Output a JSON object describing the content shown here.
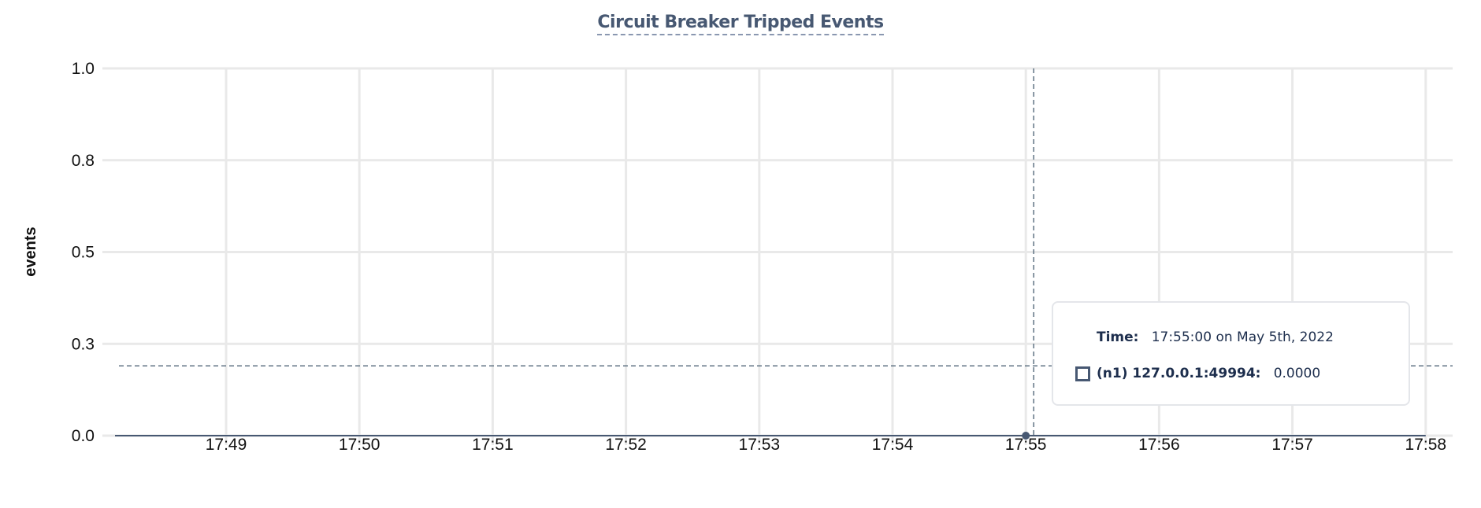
{
  "chart_data": {
    "type": "line",
    "title": "Circuit Breaker Tripped Events",
    "ylabel": "events",
    "xlabel": "",
    "ylim": [
      0,
      1
    ],
    "yticks": [
      0,
      0.25,
      0.5,
      0.75,
      1.0
    ],
    "ytick_labels": [
      "0.0",
      "0.3",
      "0.5",
      "0.8",
      "1.0"
    ],
    "xticks": [
      "17:49",
      "17:50",
      "17:51",
      "17:52",
      "17:53",
      "17:54",
      "17:55",
      "17:56",
      "17:57",
      "17:58"
    ],
    "xlim": [
      "17:48:13",
      "17:58:15"
    ],
    "grid": true,
    "series": [
      {
        "name": "(n1) 127.0.0.1:49994",
        "color": "#475872",
        "x": [
          "17:48:10",
          "17:58:00"
        ],
        "y": [
          0,
          0
        ]
      }
    ],
    "hover": {
      "x": "17:55:00",
      "y": 0,
      "crosshair_y": 0.19
    }
  },
  "tooltip": {
    "time_label": "Time:",
    "time_value": "17:55:00 on May 5th, 2022",
    "series_label": "(n1) 127.0.0.1:49994:",
    "series_value": "0.0000"
  }
}
